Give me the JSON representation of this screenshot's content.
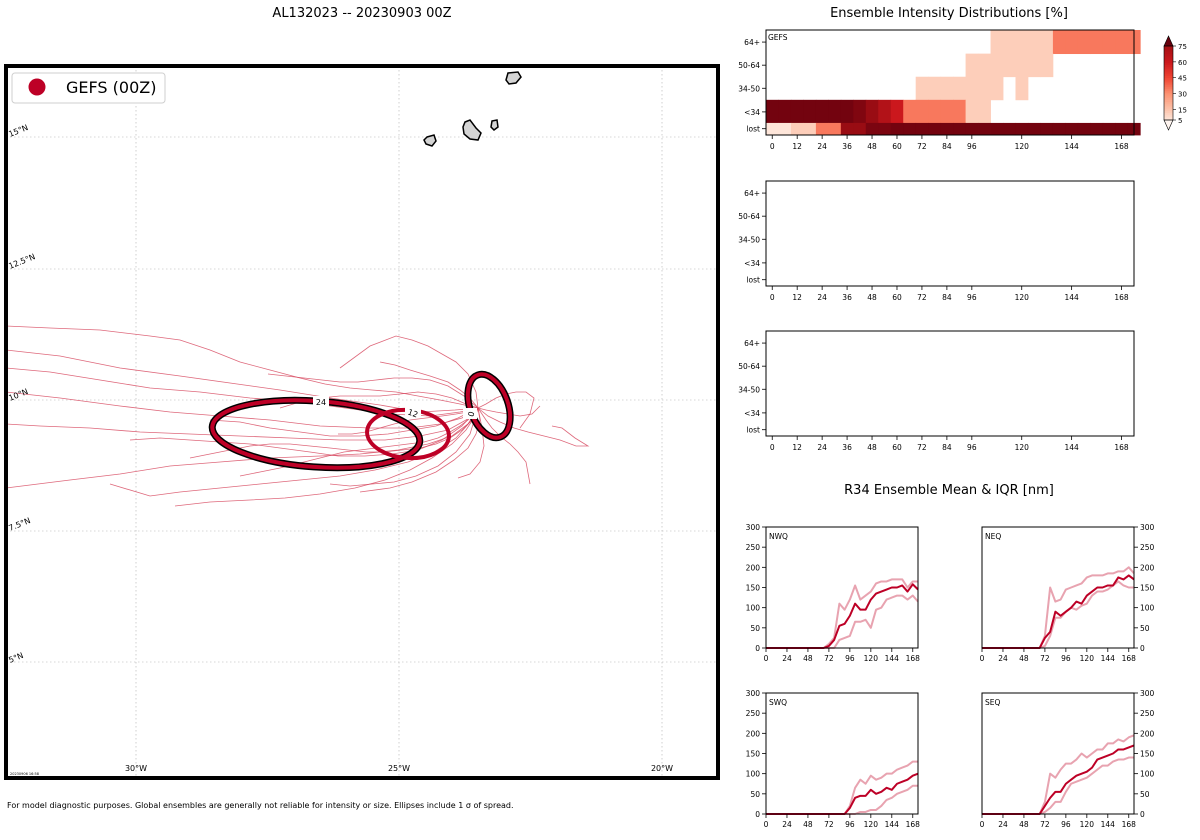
{
  "title": "AL132023 -- 20230903 00Z",
  "footer_note": "For model diagnostic purposes. Global ensembles are generally not reliable for intensity or size. Ellipses include 1 σ of spread.",
  "stamp": "20230906 16:58",
  "colors": {
    "gefs": "#bd0026",
    "gefs_track": "#d6425a",
    "iqr": "#e8a3b0",
    "land": "#d4d4d4",
    "grid": "#b0b0b0"
  },
  "map": {
    "legend_label": "GEFS (00Z)",
    "lat_labels": [
      "15°N",
      "12.5°N",
      "10°N",
      "7.5°N",
      "5°N"
    ],
    "lon_labels": [
      "30°W",
      "25°W",
      "20°W"
    ],
    "ellipse_labels": [
      "0",
      "12",
      "24"
    ]
  },
  "intensity": {
    "title": "Ensemble Intensity Distributions [%]",
    "panel_label": "GEFS",
    "rows": [
      "64+",
      "50-64",
      "34-50",
      "<34",
      "lost"
    ],
    "x_ticks": [
      "0",
      "12",
      "24",
      "36",
      "48",
      "60",
      "72",
      "84",
      "96",
      "120",
      "144",
      "168"
    ],
    "colorbar_ticks": [
      "75",
      "60",
      "45",
      "30",
      "15",
      "5"
    ]
  },
  "chart_data": [
    {
      "type": "heatmap",
      "title": "Ensemble Intensity Distributions [%]",
      "panel": "GEFS",
      "x": [
        0,
        6,
        12,
        18,
        24,
        30,
        36,
        42,
        48,
        54,
        60,
        66,
        72,
        78,
        84,
        90,
        96,
        102,
        108,
        114,
        120,
        126,
        132,
        138,
        144,
        150,
        156,
        162,
        168,
        174
      ],
      "rows": [
        "64+",
        "50-64",
        "34-50",
        "<34",
        "lost"
      ],
      "values": {
        "64+": [
          0,
          0,
          0,
          0,
          0,
          0,
          0,
          0,
          0,
          0,
          0,
          0,
          0,
          0,
          0,
          0,
          0,
          0,
          12,
          12,
          12,
          12,
          12,
          35,
          35,
          35,
          35,
          35,
          35,
          35
        ],
        "50-64": [
          0,
          0,
          0,
          0,
          0,
          0,
          0,
          0,
          0,
          0,
          0,
          0,
          0,
          0,
          0,
          0,
          12,
          12,
          12,
          12,
          12,
          12,
          12,
          0,
          0,
          0,
          0,
          0,
          0,
          0
        ],
        "34-50": [
          0,
          0,
          0,
          0,
          0,
          0,
          0,
          0,
          0,
          0,
          0,
          0,
          12,
          12,
          12,
          12,
          12,
          12,
          12,
          0,
          12,
          0,
          0,
          0,
          0,
          0,
          0,
          0,
          0,
          0
        ],
        "<34": [
          95,
          95,
          95,
          95,
          95,
          95,
          95,
          90,
          80,
          70,
          60,
          35,
          35,
          35,
          35,
          35,
          12,
          12,
          0,
          0,
          0,
          0,
          0,
          0,
          0,
          0,
          0,
          0,
          0,
          0
        ],
        "lost": [
          5,
          5,
          12,
          12,
          35,
          35,
          80,
          80,
          92,
          92,
          95,
          95,
          95,
          95,
          95,
          95,
          95,
          95,
          95,
          95,
          95,
          95,
          95,
          95,
          95,
          95,
          95,
          95,
          95,
          95
        ]
      },
      "colorbar_ticks": [
        5,
        15,
        30,
        45,
        60,
        75
      ]
    },
    {
      "type": "heatmap",
      "panel": "",
      "rows": [
        "64+",
        "50-64",
        "34-50",
        "<34",
        "lost"
      ],
      "x_ticks": [
        0,
        12,
        24,
        36,
        48,
        60,
        72,
        84,
        96,
        120,
        144,
        168
      ],
      "values": {}
    },
    {
      "type": "heatmap",
      "panel": "",
      "rows": [
        "64+",
        "50-64",
        "34-50",
        "<34",
        "lost"
      ],
      "x_ticks": [
        0,
        12,
        24,
        36,
        48,
        60,
        72,
        84,
        96,
        120,
        144,
        168
      ],
      "values": {}
    },
    {
      "type": "line",
      "title": "R34 Ensemble Mean & IQR [nm]",
      "x": [
        0,
        6,
        12,
        18,
        24,
        30,
        36,
        42,
        48,
        54,
        60,
        66,
        72,
        78,
        84,
        90,
        96,
        102,
        108,
        114,
        120,
        126,
        132,
        138,
        144,
        150,
        156,
        162,
        168,
        174
      ],
      "ylim": [
        0,
        300
      ],
      "xlim": [
        0,
        174
      ],
      "x_ticks": [
        0,
        24,
        48,
        72,
        96,
        120,
        144,
        168
      ],
      "y_ticks": [
        0,
        50,
        100,
        150,
        200,
        250,
        300
      ],
      "quadrants": [
        {
          "name": "NWQ",
          "mean": [
            0,
            0,
            0,
            0,
            0,
            0,
            0,
            0,
            0,
            0,
            0,
            0,
            5,
            20,
            55,
            60,
            80,
            110,
            95,
            95,
            120,
            135,
            140,
            145,
            150,
            150,
            155,
            140,
            158,
            145
          ],
          "q25": [
            0,
            0,
            0,
            0,
            0,
            0,
            0,
            0,
            0,
            0,
            0,
            0,
            0,
            0,
            20,
            25,
            30,
            65,
            65,
            70,
            50,
            95,
            100,
            120,
            125,
            130,
            130,
            120,
            130,
            115
          ],
          "q75": [
            0,
            0,
            0,
            0,
            0,
            0,
            0,
            0,
            0,
            0,
            0,
            0,
            10,
            25,
            110,
            95,
            120,
            155,
            120,
            130,
            140,
            160,
            165,
            165,
            170,
            170,
            170,
            150,
            165,
            165
          ]
        },
        {
          "name": "NEQ",
          "mean": [
            0,
            0,
            0,
            0,
            0,
            0,
            0,
            0,
            0,
            0,
            0,
            0,
            25,
            40,
            90,
            80,
            90,
            100,
            115,
            110,
            130,
            140,
            150,
            150,
            155,
            155,
            175,
            170,
            180,
            170
          ],
          "q25": [
            0,
            0,
            0,
            0,
            0,
            0,
            0,
            0,
            0,
            0,
            0,
            0,
            5,
            30,
            75,
            75,
            90,
            100,
            95,
            105,
            110,
            130,
            140,
            140,
            145,
            155,
            165,
            155,
            150,
            150
          ],
          "q75": [
            0,
            0,
            0,
            0,
            0,
            0,
            0,
            0,
            0,
            0,
            0,
            0,
            30,
            150,
            115,
            120,
            145,
            150,
            155,
            160,
            175,
            180,
            180,
            180,
            185,
            185,
            190,
            190,
            200,
            185
          ]
        },
        {
          "name": "SWQ",
          "mean": [
            0,
            0,
            0,
            0,
            0,
            0,
            0,
            0,
            0,
            0,
            0,
            0,
            0,
            0,
            0,
            0,
            15,
            40,
            45,
            45,
            60,
            50,
            55,
            65,
            60,
            75,
            80,
            85,
            95,
            100
          ],
          "q25": [
            0,
            0,
            0,
            0,
            0,
            0,
            0,
            0,
            0,
            0,
            0,
            0,
            0,
            0,
            0,
            0,
            0,
            0,
            5,
            5,
            10,
            10,
            20,
            35,
            40,
            50,
            55,
            60,
            70,
            70
          ],
          "q75": [
            0,
            0,
            0,
            0,
            0,
            0,
            0,
            0,
            0,
            0,
            0,
            0,
            0,
            0,
            0,
            0,
            20,
            65,
            85,
            75,
            95,
            85,
            90,
            100,
            100,
            110,
            115,
            120,
            130,
            130
          ]
        },
        {
          "name": "SEQ",
          "mean": [
            0,
            0,
            0,
            0,
            0,
            0,
            0,
            0,
            0,
            0,
            0,
            0,
            20,
            40,
            55,
            55,
            75,
            85,
            95,
            100,
            105,
            115,
            135,
            140,
            145,
            150,
            160,
            160,
            165,
            170
          ],
          "q25": [
            0,
            0,
            0,
            0,
            0,
            0,
            0,
            0,
            0,
            0,
            0,
            0,
            5,
            15,
            30,
            30,
            55,
            75,
            80,
            85,
            90,
            100,
            110,
            120,
            120,
            130,
            135,
            135,
            140,
            140
          ],
          "q75": [
            0,
            0,
            0,
            0,
            0,
            0,
            0,
            0,
            0,
            0,
            0,
            0,
            30,
            100,
            90,
            110,
            125,
            125,
            135,
            150,
            140,
            150,
            160,
            160,
            175,
            175,
            185,
            180,
            190,
            195
          ]
        }
      ]
    }
  ]
}
